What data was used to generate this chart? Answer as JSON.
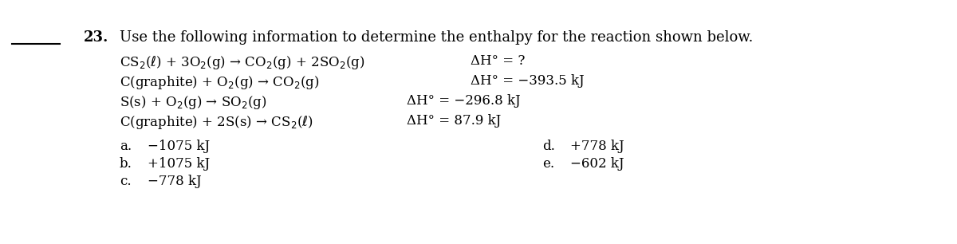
{
  "background_color": "#ffffff",
  "number": "23.",
  "question": "Use the following information to determine the enthalpy for the reaction shown below.",
  "reaction_main": "CS$_2$($\\ell$) + 3O$_2$(g) → CO$_2$(g) + 2SO$_2$(g)",
  "dH_main": "ΔH° = ?",
  "reaction1": "C(graphite) + O$_2$(g) → CO$_2$(g)",
  "dH1": "ΔH° = −393.5 kJ",
  "reaction2": "S(s) + O$_2$(g) → SO$_2$(g)",
  "dH2": "ΔH° = −296.8 kJ",
  "reaction3": "C(graphite) + 2S(s) → CS$_2$($\\ell$)",
  "dH3": "ΔH° = 87.9 kJ",
  "choices_left": [
    [
      "a.",
      "−1075 kJ"
    ],
    [
      "b.",
      "+1075 kJ"
    ],
    [
      "c.",
      "−778 kJ"
    ]
  ],
  "choices_right": [
    [
      "d.",
      "+778 kJ"
    ],
    [
      "e.",
      "−602 kJ"
    ]
  ],
  "font_size_number": 13,
  "font_size_question": 13,
  "font_size_text": 12,
  "font_size_choices": 12,
  "text_color": "#000000"
}
